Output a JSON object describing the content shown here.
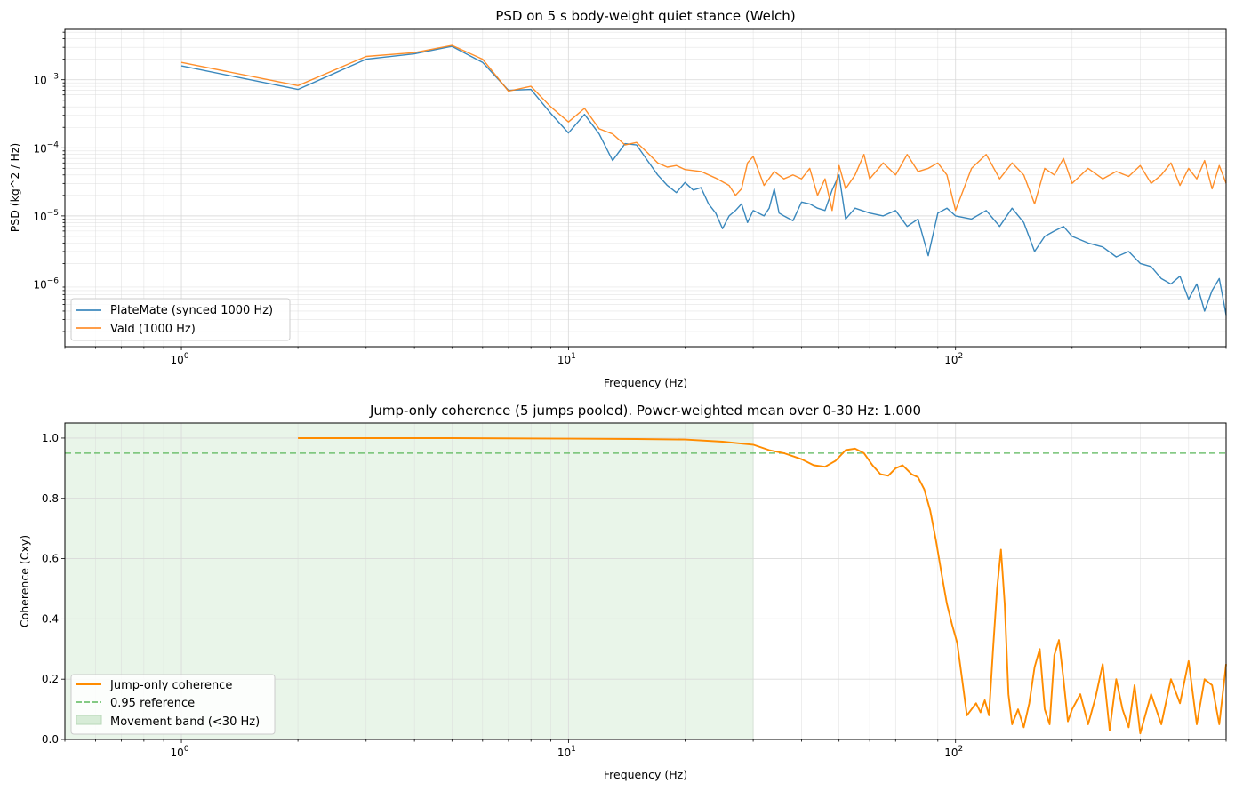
{
  "chart_data": [
    {
      "type": "line",
      "title": "PSD on 5 s body-weight quiet stance (Welch)",
      "xlabel": "Frequency (Hz)",
      "ylabel": "PSD (kg^2 / Hz)",
      "xscale": "log",
      "yscale": "log",
      "xlim": [
        0.5,
        500
      ],
      "ylim": [
        1.2e-07,
        0.0055
      ],
      "grid": true,
      "legend_position": "lower-left",
      "x_tick_labels": [
        "10^0",
        "10^1",
        "10^2"
      ],
      "y_tick_labels": [
        "10^-6",
        "10^-5",
        "10^-4",
        "10^-3"
      ],
      "series": [
        {
          "name": "PlateMate (synced 1000 Hz)",
          "color": "#1f77b4",
          "points": [
            [
              1,
              0.0016
            ],
            [
              2,
              0.00072
            ],
            [
              3,
              0.002
            ],
            [
              4,
              0.0024
            ],
            [
              5,
              0.0031
            ],
            [
              6,
              0.0018
            ],
            [
              7,
              0.0007
            ],
            [
              8,
              0.00072
            ],
            [
              9,
              0.00032
            ],
            [
              10,
              0.000165
            ],
            [
              11,
              0.00031
            ],
            [
              12,
              0.00016
            ],
            [
              13,
              6.5e-05
            ],
            [
              14,
              0.000115
            ],
            [
              15,
              0.00011
            ],
            [
              16,
              6.5e-05
            ],
            [
              17,
              4e-05
            ],
            [
              18,
              2.8e-05
            ],
            [
              19,
              2.2e-05
            ],
            [
              20,
              3.1e-05
            ],
            [
              21,
              2.4e-05
            ],
            [
              22,
              2.6e-05
            ],
            [
              23,
              1.5e-05
            ],
            [
              24,
              1.1e-05
            ],
            [
              25,
              6.5e-06
            ],
            [
              26,
              1e-05
            ],
            [
              27,
              1.2e-05
            ],
            [
              28,
              1.5e-05
            ],
            [
              29,
              8e-06
            ],
            [
              30,
              1.2e-05
            ],
            [
              32,
              1e-05
            ],
            [
              33,
              1.3e-05
            ],
            [
              34,
              2.5e-05
            ],
            [
              35,
              1.1e-05
            ],
            [
              36,
              1e-05
            ],
            [
              38,
              8.5e-06
            ],
            [
              40,
              1.6e-05
            ],
            [
              42,
              1.5e-05
            ],
            [
              44,
              1.3e-05
            ],
            [
              46,
              1.2e-05
            ],
            [
              48,
              2.4e-05
            ],
            [
              50,
              4e-05
            ],
            [
              52,
              9e-06
            ],
            [
              55,
              1.3e-05
            ],
            [
              60,
              1.1e-05
            ],
            [
              65,
              1e-05
            ],
            [
              70,
              1.2e-05
            ],
            [
              75,
              7e-06
            ],
            [
              80,
              9e-06
            ],
            [
              85,
              2.6e-06
            ],
            [
              90,
              1.1e-05
            ],
            [
              95,
              1.3e-05
            ],
            [
              100,
              1e-05
            ],
            [
              110,
              9e-06
            ],
            [
              120,
              1.2e-05
            ],
            [
              130,
              7e-06
            ],
            [
              140,
              1.3e-05
            ],
            [
              150,
              8e-06
            ],
            [
              160,
              3e-06
            ],
            [
              170,
              5e-06
            ],
            [
              180,
              6e-06
            ],
            [
              190,
              7e-06
            ],
            [
              200,
              5e-06
            ],
            [
              220,
              4e-06
            ],
            [
              240,
              3.5e-06
            ],
            [
              260,
              2.5e-06
            ],
            [
              280,
              3e-06
            ],
            [
              300,
              2e-06
            ],
            [
              320,
              1.8e-06
            ],
            [
              340,
              1.2e-06
            ],
            [
              360,
              1e-06
            ],
            [
              380,
              1.3e-06
            ],
            [
              400,
              6e-07
            ],
            [
              420,
              1e-06
            ],
            [
              440,
              4e-07
            ],
            [
              460,
              8e-07
            ],
            [
              480,
              1.2e-06
            ],
            [
              500,
              3.5e-07
            ]
          ]
        },
        {
          "name": "Vald (1000 Hz)",
          "color": "#ff7f0e",
          "points": [
            [
              1,
              0.0018
            ],
            [
              2,
              0.00082
            ],
            [
              3,
              0.0022
            ],
            [
              4,
              0.0025
            ],
            [
              5,
              0.0032
            ],
            [
              6,
              0.002
            ],
            [
              7,
              0.00068
            ],
            [
              8,
              0.0008
            ],
            [
              9,
              0.0004
            ],
            [
              10,
              0.00024
            ],
            [
              11,
              0.00038
            ],
            [
              12,
              0.00019
            ],
            [
              13,
              0.00016
            ],
            [
              14,
              0.00011
            ],
            [
              15,
              0.00012
            ],
            [
              16,
              8.5e-05
            ],
            [
              17,
              6e-05
            ],
            [
              18,
              5.2e-05
            ],
            [
              19,
              5.5e-05
            ],
            [
              20,
              4.8e-05
            ],
            [
              22,
              4.5e-05
            ],
            [
              24,
              3.6e-05
            ],
            [
              26,
              2.8e-05
            ],
            [
              27,
              2e-05
            ],
            [
              28,
              2.5e-05
            ],
            [
              29,
              6e-05
            ],
            [
              30,
              7.5e-05
            ],
            [
              32,
              2.8e-05
            ],
            [
              34,
              4.5e-05
            ],
            [
              36,
              3.5e-05
            ],
            [
              38,
              4e-05
            ],
            [
              40,
              3.5e-05
            ],
            [
              42,
              5e-05
            ],
            [
              44,
              2e-05
            ],
            [
              46,
              3.5e-05
            ],
            [
              48,
              1.2e-05
            ],
            [
              50,
              5.5e-05
            ],
            [
              52,
              2.5e-05
            ],
            [
              55,
              4e-05
            ],
            [
              58,
              8e-05
            ],
            [
              60,
              3.5e-05
            ],
            [
              65,
              6e-05
            ],
            [
              70,
              4e-05
            ],
            [
              75,
              8e-05
            ],
            [
              80,
              4.5e-05
            ],
            [
              85,
              5e-05
            ],
            [
              90,
              6e-05
            ],
            [
              95,
              4e-05
            ],
            [
              100,
              1.2e-05
            ],
            [
              110,
              5e-05
            ],
            [
              120,
              8e-05
            ],
            [
              130,
              3.5e-05
            ],
            [
              140,
              6e-05
            ],
            [
              150,
              4e-05
            ],
            [
              160,
              1.5e-05
            ],
            [
              170,
              5e-05
            ],
            [
              180,
              4e-05
            ],
            [
              190,
              7e-05
            ],
            [
              200,
              3e-05
            ],
            [
              220,
              5e-05
            ],
            [
              240,
              3.5e-05
            ],
            [
              260,
              4.5e-05
            ],
            [
              280,
              3.8e-05
            ],
            [
              300,
              5.5e-05
            ],
            [
              320,
              3e-05
            ],
            [
              340,
              4e-05
            ],
            [
              360,
              6e-05
            ],
            [
              380,
              2.8e-05
            ],
            [
              400,
              5e-05
            ],
            [
              420,
              3.5e-05
            ],
            [
              440,
              6.5e-05
            ],
            [
              460,
              2.5e-05
            ],
            [
              480,
              5.5e-05
            ],
            [
              500,
              3e-05
            ]
          ]
        }
      ]
    },
    {
      "type": "line",
      "title": "Jump-only coherence (5 jumps pooled). Power-weighted mean over 0-30 Hz: 1.000",
      "xlabel": "Frequency (Hz)",
      "ylabel": "Coherence (Cxy)",
      "xscale": "log",
      "xlim": [
        0.5,
        500
      ],
      "ylim": [
        0,
        1.05
      ],
      "y_ticks": [
        0.0,
        0.2,
        0.4,
        0.6,
        0.8,
        1.0
      ],
      "y_tick_labels": [
        "0.0",
        "0.2",
        "0.4",
        "0.6",
        "0.8",
        "1.0"
      ],
      "x_tick_labels": [
        "10^0",
        "10^1",
        "10^2"
      ],
      "grid": true,
      "legend_position": "lower-left",
      "reference": {
        "name": "0.95 reference",
        "y": 0.95,
        "color": "#5cb85c"
      },
      "band": {
        "name": "Movement band (<30 Hz)",
        "x_max": 30,
        "color": "#d7ecd7"
      },
      "series": [
        {
          "name": "Jump-only coherence",
          "color": "#ff8c00",
          "points": [
            [
              2,
              1.0
            ],
            [
              5,
              1.0
            ],
            [
              10,
              0.998
            ],
            [
              15,
              0.997
            ],
            [
              20,
              0.995
            ],
            [
              25,
              0.988
            ],
            [
              30,
              0.978
            ],
            [
              33,
              0.96
            ],
            [
              36,
              0.95
            ],
            [
              40,
              0.93
            ],
            [
              43,
              0.91
            ],
            [
              46,
              0.905
            ],
            [
              49,
              0.925
            ],
            [
              52,
              0.96
            ],
            [
              55,
              0.965
            ],
            [
              58,
              0.95
            ],
            [
              61,
              0.91
            ],
            [
              64,
              0.88
            ],
            [
              67,
              0.875
            ],
            [
              70,
              0.9
            ],
            [
              73,
              0.91
            ],
            [
              77,
              0.88
            ],
            [
              80,
              0.87
            ],
            [
              83,
              0.83
            ],
            [
              86,
              0.76
            ],
            [
              89,
              0.66
            ],
            [
              92,
              0.55
            ],
            [
              95,
              0.45
            ],
            [
              98,
              0.38
            ],
            [
              101,
              0.32
            ],
            [
              104,
              0.2
            ],
            [
              107,
              0.08
            ],
            [
              110,
              0.1
            ],
            [
              113,
              0.12
            ],
            [
              116,
              0.09
            ],
            [
              119,
              0.13
            ],
            [
              122,
              0.08
            ],
            [
              125,
              0.3
            ],
            [
              128,
              0.5
            ],
            [
              131,
              0.63
            ],
            [
              134,
              0.45
            ],
            [
              137,
              0.15
            ],
            [
              140,
              0.05
            ],
            [
              145,
              0.1
            ],
            [
              150,
              0.04
            ],
            [
              155,
              0.12
            ],
            [
              160,
              0.24
            ],
            [
              165,
              0.3
            ],
            [
              170,
              0.1
            ],
            [
              175,
              0.05
            ],
            [
              180,
              0.28
            ],
            [
              185,
              0.33
            ],
            [
              190,
              0.2
            ],
            [
              195,
              0.06
            ],
            [
              200,
              0.1
            ],
            [
              210,
              0.15
            ],
            [
              220,
              0.05
            ],
            [
              230,
              0.14
            ],
            [
              240,
              0.25
            ],
            [
              250,
              0.03
            ],
            [
              260,
              0.2
            ],
            [
              270,
              0.1
            ],
            [
              280,
              0.04
            ],
            [
              290,
              0.18
            ],
            [
              300,
              0.02
            ],
            [
              320,
              0.15
            ],
            [
              340,
              0.05
            ],
            [
              360,
              0.2
            ],
            [
              380,
              0.12
            ],
            [
              400,
              0.26
            ],
            [
              420,
              0.05
            ],
            [
              440,
              0.2
            ],
            [
              460,
              0.18
            ],
            [
              480,
              0.05
            ],
            [
              500,
              0.25
            ]
          ]
        }
      ]
    }
  ]
}
